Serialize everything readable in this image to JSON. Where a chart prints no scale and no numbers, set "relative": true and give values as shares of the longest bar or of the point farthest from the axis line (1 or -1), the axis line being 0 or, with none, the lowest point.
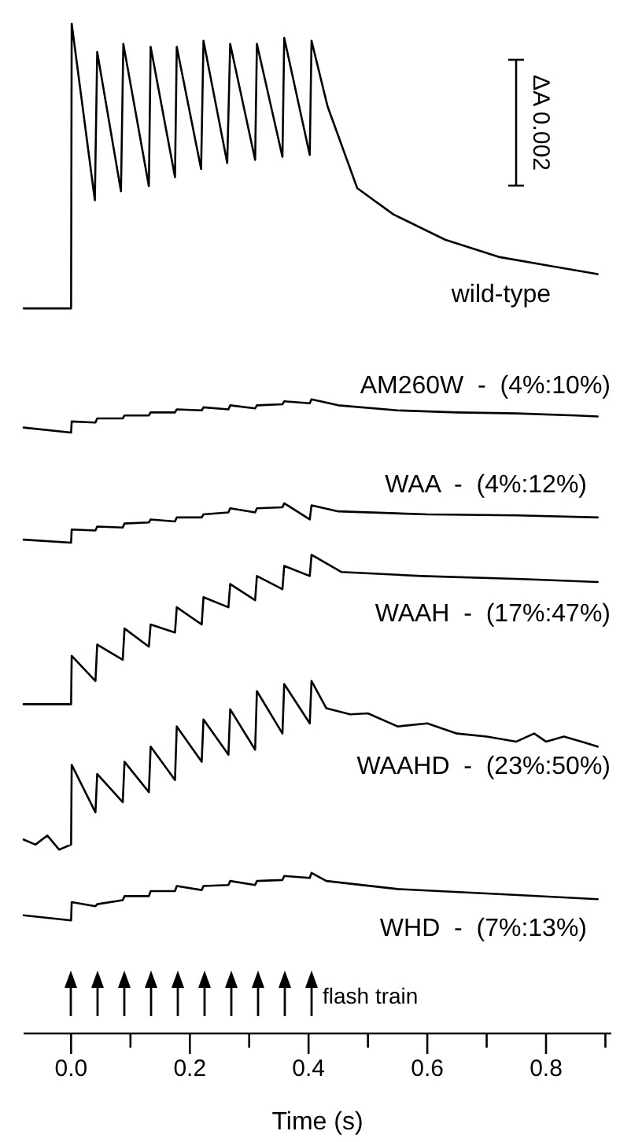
{
  "chart_data": {
    "type": "line",
    "relative": true,
    "xlim": [
      -0.08,
      0.91
    ],
    "xlabel": "Time (s)",
    "annotations": [
      "ΔA 0.002",
      "flash train"
    ],
    "xticks": [
      {
        "value": 0,
        "label": "0.0"
      },
      {
        "value": 0.1,
        "label": null
      },
      {
        "value": 0.2,
        "label": "0.2"
      },
      {
        "value": 0.3,
        "label": null
      },
      {
        "value": 0.4,
        "label": "0.4"
      },
      {
        "value": 0.5,
        "label": null
      },
      {
        "value": 0.6,
        "label": "0.6"
      },
      {
        "value": 0.7,
        "label": null
      },
      {
        "value": 0.8,
        "label": "0.8"
      },
      {
        "value": 0.9,
        "label": null
      }
    ],
    "series": [
      {
        "name": "wild-type",
        "color": "#000000",
        "x": [
          -0.08,
          0,
          0.001,
          0.04,
          0.044,
          0.084,
          0.088,
          0.131,
          0.134,
          0.175,
          0.178,
          0.219,
          0.223,
          0.263,
          0.268,
          0.31,
          0.313,
          0.356,
          0.359,
          0.402,
          0.405,
          0.432,
          0.482,
          0.543,
          0.63,
          0.72,
          0.808,
          0.887
        ],
        "values": [
          0.718,
          0.718,
          1.0,
          0.825,
          0.972,
          0.834,
          0.98,
          0.839,
          0.977,
          0.848,
          0.977,
          0.856,
          0.983,
          0.862,
          0.98,
          0.865,
          0.98,
          0.868,
          0.986,
          0.87,
          0.983,
          0.918,
          0.837,
          0.811,
          0.786,
          0.769,
          0.76,
          0.752
        ]
      },
      {
        "name": "AM260W  -  (4%:10%)",
        "color": "#000000",
        "x": [
          -0.08,
          0,
          0.001,
          0.041,
          0.044,
          0.087,
          0.09,
          0.131,
          0.134,
          0.175,
          0.178,
          0.22,
          0.223,
          0.265,
          0.268,
          0.31,
          0.313,
          0.356,
          0.359,
          0.402,
          0.405,
          0.45,
          0.55,
          0.65,
          0.75,
          0.85,
          0.887
        ],
        "values": [
          0.6,
          0.595,
          0.606,
          0.605,
          0.609,
          0.609,
          0.612,
          0.612,
          0.615,
          0.615,
          0.618,
          0.617,
          0.62,
          0.618,
          0.622,
          0.619,
          0.622,
          0.623,
          0.626,
          0.624,
          0.628,
          0.622,
          0.617,
          0.615,
          0.614,
          0.612,
          0.611
        ]
      },
      {
        "name": "WAA  -  (4%:12%)",
        "color": "#000000",
        "x": [
          -0.08,
          0,
          0.001,
          0.041,
          0.044,
          0.087,
          0.09,
          0.131,
          0.134,
          0.175,
          0.178,
          0.22,
          0.223,
          0.265,
          0.268,
          0.31,
          0.313,
          0.356,
          0.359,
          0.402,
          0.405,
          0.45,
          0.6,
          0.75,
          0.887
        ],
        "values": [
          0.489,
          0.486,
          0.499,
          0.498,
          0.502,
          0.501,
          0.505,
          0.506,
          0.509,
          0.507,
          0.511,
          0.511,
          0.514,
          0.516,
          0.52,
          0.516,
          0.52,
          0.521,
          0.525,
          0.509,
          0.523,
          0.517,
          0.514,
          0.513,
          0.511
        ]
      },
      {
        "name": "WAAH  -  (17%:47%)",
        "color": "#000000",
        "x": [
          -0.08,
          0,
          0.001,
          0.041,
          0.044,
          0.087,
          0.09,
          0.131,
          0.134,
          0.175,
          0.178,
          0.22,
          0.223,
          0.265,
          0.268,
          0.31,
          0.313,
          0.356,
          0.359,
          0.402,
          0.405,
          0.455,
          0.59,
          0.76,
          0.887
        ],
        "values": [
          0.326,
          0.326,
          0.374,
          0.349,
          0.385,
          0.37,
          0.401,
          0.383,
          0.405,
          0.397,
          0.422,
          0.405,
          0.432,
          0.422,
          0.445,
          0.429,
          0.453,
          0.44,
          0.463,
          0.453,
          0.474,
          0.457,
          0.453,
          0.45,
          0.447
        ]
      },
      {
        "name": "WAAHD  -  (23%:50%)",
        "color": "#000000",
        "x": [
          -0.08,
          -0.06,
          -0.04,
          -0.02,
          0,
          0.001,
          0.041,
          0.044,
          0.087,
          0.09,
          0.131,
          0.134,
          0.175,
          0.178,
          0.22,
          0.223,
          0.265,
          0.268,
          0.31,
          0.313,
          0.356,
          0.359,
          0.402,
          0.405,
          0.43,
          0.47,
          0.5,
          0.55,
          0.6,
          0.65,
          0.7,
          0.75,
          0.78,
          0.8,
          0.83,
          0.86,
          0.887
        ],
        "values": [
          0.192,
          0.187,
          0.196,
          0.182,
          0.187,
          0.266,
          0.219,
          0.257,
          0.229,
          0.269,
          0.239,
          0.284,
          0.251,
          0.304,
          0.269,
          0.311,
          0.276,
          0.321,
          0.281,
          0.339,
          0.297,
          0.346,
          0.307,
          0.349,
          0.322,
          0.316,
          0.317,
          0.304,
          0.307,
          0.297,
          0.294,
          0.289,
          0.297,
          0.289,
          0.294,
          0.289,
          0.284
        ]
      },
      {
        "name": "WHD  -  (7%:13%)",
        "color": "#000000",
        "x": [
          -0.08,
          0,
          0.001,
          0.041,
          0.044,
          0.087,
          0.09,
          0.131,
          0.134,
          0.175,
          0.178,
          0.22,
          0.223,
          0.265,
          0.268,
          0.31,
          0.313,
          0.356,
          0.359,
          0.402,
          0.405,
          0.43,
          0.55,
          0.72,
          0.887
        ],
        "values": [
          0.117,
          0.112,
          0.13,
          0.126,
          0.128,
          0.132,
          0.136,
          0.136,
          0.141,
          0.141,
          0.146,
          0.142,
          0.146,
          0.147,
          0.151,
          0.147,
          0.151,
          0.152,
          0.156,
          0.154,
          0.159,
          0.151,
          0.143,
          0.138,
          0.133
        ]
      }
    ]
  }
}
